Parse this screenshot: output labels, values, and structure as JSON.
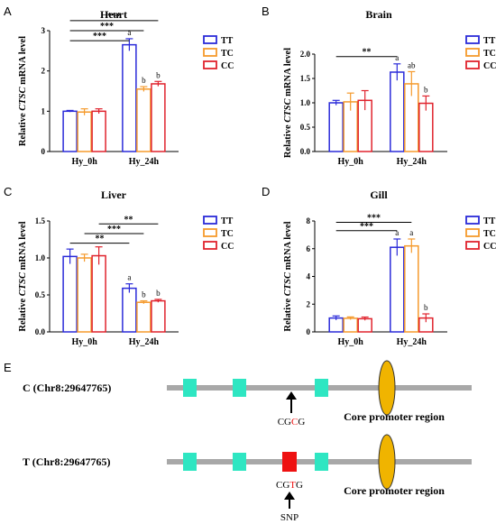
{
  "chart_data": [
    {
      "type": "bar",
      "panel": "A",
      "title": "Heart",
      "ylabel_pre": "Relative ",
      "ylabel_gene": "CTSC",
      "ylabel_post": " mRNA  level",
      "categories": [
        "Hy_0h",
        "Hy_24h"
      ],
      "ylim": [
        0,
        3
      ],
      "yticks": [
        "0",
        "1",
        "2",
        "3"
      ],
      "series": [
        {
          "name": "TT",
          "values": [
            1.0,
            2.65
          ],
          "errors": [
            0.02,
            0.15
          ],
          "color": "#2b2bd9"
        },
        {
          "name": "TC",
          "values": [
            0.98,
            1.55
          ],
          "errors": [
            0.08,
            0.06
          ],
          "color": "#f59a2c"
        },
        {
          "name": "CC",
          "values": [
            1.0,
            1.68
          ],
          "errors": [
            0.06,
            0.06
          ],
          "color": "#e0232d"
        }
      ],
      "letters": [
        [
          "",
          "",
          ""
        ],
        [
          "a",
          "b",
          "b"
        ]
      ],
      "sig": [
        {
          "label": "***",
          "from": [
            0,
            0
          ],
          "to": [
            1,
            2
          ],
          "y": 3.25
        },
        {
          "label": "***",
          "from": [
            0,
            0
          ],
          "to": [
            1,
            1
          ],
          "y": 3.0
        },
        {
          "label": "***",
          "from": [
            0,
            0
          ],
          "to": [
            1,
            0
          ],
          "y": 2.75
        }
      ]
    },
    {
      "type": "bar",
      "panel": "B",
      "title": "Brain",
      "ylabel_pre": "Relative ",
      "ylabel_gene": "CTSC",
      "ylabel_post": " mRNA  level",
      "categories": [
        "Hy_0h",
        "Hy_24h"
      ],
      "ylim": [
        0,
        2.0
      ],
      "yticks": [
        "0.0",
        "0.5",
        "1.0",
        "1.5",
        "2.0"
      ],
      "series": [
        {
          "name": "TT",
          "values": [
            1.0,
            1.63
          ],
          "errors": [
            0.05,
            0.17
          ],
          "color": "#2b2bd9"
        },
        {
          "name": "TC",
          "values": [
            1.02,
            1.39
          ],
          "errors": [
            0.18,
            0.25
          ],
          "color": "#f59a2c"
        },
        {
          "name": "CC",
          "values": [
            1.05,
            0.99
          ],
          "errors": [
            0.2,
            0.15
          ],
          "color": "#e0232d"
        }
      ],
      "letters": [
        [
          "",
          "",
          ""
        ],
        [
          "a",
          "ab",
          "b"
        ]
      ],
      "sig": [
        {
          "label": "**",
          "from": [
            0,
            0
          ],
          "to": [
            1,
            0
          ],
          "y": 1.95
        }
      ]
    },
    {
      "type": "bar",
      "panel": "C",
      "title": "Liver",
      "ylabel_pre": "Relative ",
      "ylabel_gene": "CTSC",
      "ylabel_post": " mRNA  level",
      "categories": [
        "Hy_0h",
        "Hy_24h"
      ],
      "ylim": [
        0,
        1.5
      ],
      "yticks": [
        "0.0",
        "0.5",
        "1.0",
        "1.5"
      ],
      "series": [
        {
          "name": "TT",
          "values": [
            1.02,
            0.59
          ],
          "errors": [
            0.1,
            0.06
          ],
          "color": "#2b2bd9"
        },
        {
          "name": "TC",
          "values": [
            1.0,
            0.4
          ],
          "errors": [
            0.05,
            0.02
          ],
          "color": "#f59a2c"
        },
        {
          "name": "CC",
          "values": [
            1.03,
            0.42
          ],
          "errors": [
            0.12,
            0.02
          ],
          "color": "#e0232d"
        }
      ],
      "letters": [
        [
          "",
          "",
          ""
        ],
        [
          "a",
          "b",
          "b"
        ]
      ],
      "sig": [
        {
          "label": "**",
          "from": [
            0,
            0
          ],
          "to": [
            1,
            0
          ],
          "y": 1.2
        },
        {
          "label": "***",
          "from": [
            0,
            1
          ],
          "to": [
            1,
            1
          ],
          "y": 1.33
        },
        {
          "label": "**",
          "from": [
            0,
            2
          ],
          "to": [
            1,
            2
          ],
          "y": 1.46
        }
      ]
    },
    {
      "type": "bar",
      "panel": "D",
      "title": "Gill",
      "ylabel_pre": "Relative ",
      "ylabel_gene": "CTSC",
      "ylabel_post": " mRNA  level",
      "categories": [
        "Hy_0h",
        "Hy_24h"
      ],
      "ylim": [
        0,
        8
      ],
      "yticks": [
        "0",
        "2",
        "4",
        "6",
        "8"
      ],
      "series": [
        {
          "name": "TT",
          "values": [
            1.0,
            6.1
          ],
          "errors": [
            0.15,
            0.6
          ],
          "color": "#2b2bd9"
        },
        {
          "name": "TC",
          "values": [
            0.98,
            6.2
          ],
          "errors": [
            0.1,
            0.5
          ],
          "color": "#f59a2c"
        },
        {
          "name": "CC",
          "values": [
            0.95,
            1.0
          ],
          "errors": [
            0.12,
            0.3
          ],
          "color": "#e0232d"
        }
      ],
      "letters": [
        [
          "",
          "",
          ""
        ],
        [
          "a",
          "a",
          "b"
        ]
      ],
      "sig": [
        {
          "label": "***",
          "from": [
            0,
            0
          ],
          "to": [
            1,
            0
          ],
          "y": 7.3
        },
        {
          "label": "***",
          "from": [
            0,
            0
          ],
          "to": [
            1,
            1
          ],
          "y": 7.9
        }
      ]
    }
  ],
  "panel_e": {
    "panel": "E",
    "rows": [
      {
        "label": "C (Chr8:29647765)",
        "seq_pre": "CG",
        "seq_snp": "C",
        "seq_post": "G",
        "snp_label": ""
      },
      {
        "label": "T (Chr8:29647765)",
        "seq_pre": "CG",
        "seq_snp": "T",
        "seq_post": "G",
        "snp_label": "SNP"
      }
    ],
    "core_promoter_label": "Core promoter region",
    "colors": {
      "line": "#a8a8a8",
      "box": "#2ee6c2",
      "snp_box": "#ee1111",
      "snp_text": "#ee1111",
      "promoter": "#f0b400"
    }
  }
}
